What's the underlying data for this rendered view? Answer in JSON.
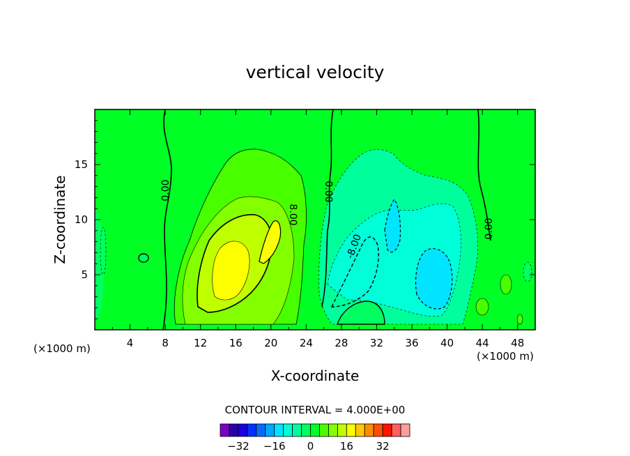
{
  "chart_data": {
    "type": "contour",
    "title": "vertical velocity",
    "xlabel": "X-coordinate",
    "ylabel": "Z-coordinate",
    "x_unit_left": "(×1000 m)",
    "x_unit_right": "(×1000 m)",
    "xlim": [
      0,
      50
    ],
    "ylim": [
      0,
      20
    ],
    "x_ticks": [
      4,
      8,
      12,
      16,
      20,
      24,
      28,
      32,
      36,
      40,
      44,
      48
    ],
    "y_ticks": [
      5,
      10,
      15
    ],
    "contour_interval_text": "CONTOUR INTERVAL = 4.000E+00",
    "contour_labels": [
      "0.00",
      "8.00",
      "0.00",
      "-8.00",
      "0.00"
    ],
    "colorbar": {
      "levels": [
        -36,
        -32,
        -28,
        -24,
        -20,
        -16,
        -12,
        -8,
        -4,
        0,
        4,
        8,
        12,
        16,
        20,
        24,
        28,
        32,
        36,
        40
      ],
      "colors": [
        "#7b00c8",
        "#2a00a8",
        "#1800e0",
        "#0030ff",
        "#006cff",
        "#00a8ff",
        "#00e4ff",
        "#00ffd8",
        "#00ff9c",
        "#00ff60",
        "#00ff24",
        "#48ff00",
        "#84ff00",
        "#c0ff00",
        "#fcff00",
        "#ffc800",
        "#ff8c00",
        "#ff5000",
        "#ff1400",
        "#ff6060",
        "#ff9c9c"
      ],
      "tick_values": [
        -32,
        -16,
        0,
        16,
        32
      ]
    },
    "features": [
      {
        "kind": "updraft",
        "x": 16,
        "z": 6.5,
        "peak": 14
      },
      {
        "kind": "updraft",
        "x": 20,
        "z": 8.5,
        "peak": 10
      },
      {
        "kind": "downdraft",
        "x": 32.5,
        "z": 9,
        "peak": -10
      },
      {
        "kind": "downdraft",
        "x": 38.5,
        "z": 5.5,
        "peak": -16
      }
    ]
  }
}
